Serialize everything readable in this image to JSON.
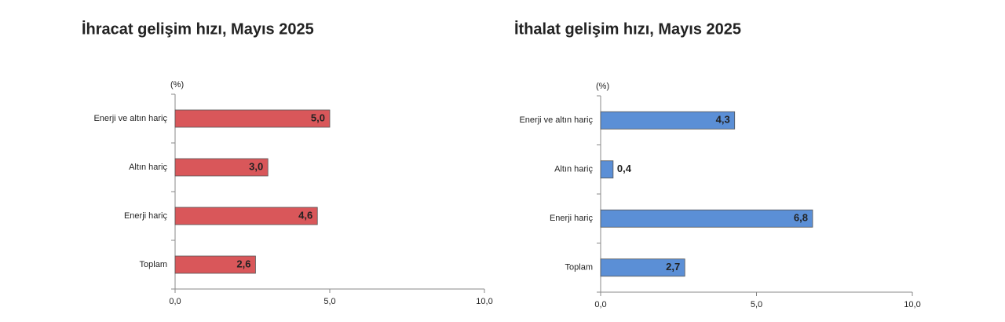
{
  "chart_data": [
    {
      "type": "bar",
      "orientation": "horizontal",
      "title": "İhracat gelişim hızı, Mayıs 2025",
      "unit_label": "(%)",
      "categories": [
        "Enerji ve altın hariç",
        "Altın hariç",
        "Enerji hariç",
        "Toplam"
      ],
      "values": [
        5.0,
        3.0,
        4.6,
        2.6
      ],
      "value_labels": [
        "5,0",
        "3,0",
        "4,6",
        "2,6"
      ],
      "color": "#d9575a",
      "xlim": [
        0,
        10
      ],
      "xticks": [
        {
          "value": 0,
          "label": "0,0"
        },
        {
          "value": 5,
          "label": "5,0"
        },
        {
          "value": 10,
          "label": "10,0"
        }
      ]
    },
    {
      "type": "bar",
      "orientation": "horizontal",
      "title": "İthalat gelişim hızı, Mayıs 2025",
      "unit_label": "(%)",
      "categories": [
        "Enerji ve altın hariç",
        "Altın hariç",
        "Enerji hariç",
        "Toplam"
      ],
      "values": [
        4.3,
        0.4,
        6.8,
        2.7
      ],
      "value_labels": [
        "4,3",
        "0,4",
        "6,8",
        "2,7"
      ],
      "color": "#5b8fd6",
      "xlim": [
        0,
        10
      ],
      "xticks": [
        {
          "value": 0,
          "label": "0,0"
        },
        {
          "value": 5,
          "label": "5,0"
        },
        {
          "value": 10,
          "label": "10,0"
        }
      ]
    }
  ]
}
